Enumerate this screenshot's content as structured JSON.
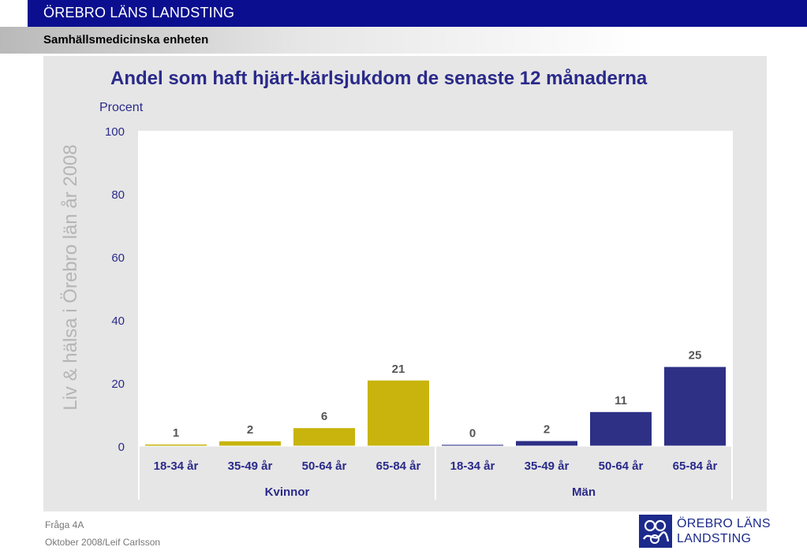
{
  "header": {
    "org_name": "ÖREBRO LÄNS LANDSTING",
    "unit_name": "Samhällsmedicinska enheten"
  },
  "watermark": "Liv & hälsa i Örebro län år 2008",
  "footer": {
    "question": "Fråga 4A",
    "credit": "Oktober 2008/Leif Carlsson"
  },
  "logo": {
    "line1": "ÖREBRO LÄNS",
    "line2": "LANDSTING"
  },
  "colors": {
    "header_bg": "#0b0f8f",
    "kvinnor": "#c8b40c",
    "man": "#2e3086",
    "text_accent": "#2a2a8a"
  },
  "chart_data": {
    "type": "bar",
    "title": "Andel som haft hjärt-kärlsjukdom de senaste 12 månaderna",
    "ylabel": "Procent",
    "ylim": [
      0,
      100
    ],
    "yticks": [
      0,
      20,
      40,
      60,
      80,
      100
    ],
    "grid": false,
    "categories": [
      "18-34 år",
      "35-49 år",
      "50-64 år",
      "65-84 år",
      "18-34 år",
      "35-49 år",
      "50-64 år",
      "65-84 år"
    ],
    "groups": [
      {
        "name": "Kvinnor",
        "categories": [
          "18-34 år",
          "35-49 år",
          "50-64 år",
          "65-84 år"
        ],
        "values": [
          0.5,
          1.5,
          5.7,
          20.8
        ],
        "labels": [
          "1",
          "2",
          "6",
          "21"
        ],
        "color": "#c8b40c"
      },
      {
        "name": "Män",
        "categories": [
          "18-34 år",
          "35-49 år",
          "50-64 år",
          "65-84 år"
        ],
        "values": [
          0.4,
          1.6,
          10.8,
          25.1
        ],
        "labels": [
          "0",
          "2",
          "11",
          "25"
        ],
        "color": "#2e3086"
      }
    ]
  }
}
